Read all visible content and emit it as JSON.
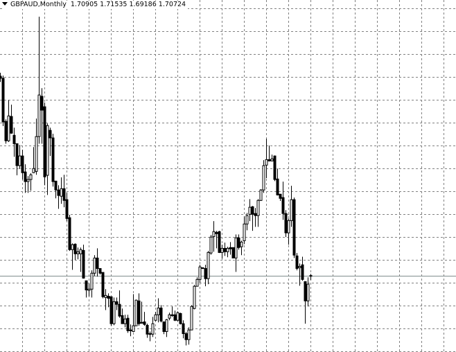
{
  "header": {
    "symbol": "GBPAUD",
    "timeframe": "Monthly",
    "title": "GBPAUD,Monthly",
    "ohlc_text": "1.70905 1.71535 1.69186 1.70724",
    "menu_icon": "triangle-down-icon"
  },
  "colors": {
    "background": "#ffffff",
    "grid": "#808080",
    "candle": "#000000",
    "bull_fill": "#ffffff",
    "bear_fill": "#000000",
    "bid_line": "#7f8c8c"
  },
  "chart_data": {
    "type": "candlestick",
    "title": "GBPAUD,Monthly",
    "grid": true,
    "ylim": [
      1.4168,
      2.762
    ],
    "bid": 1.70724,
    "ohlc": [
      [
        2.471,
        2.484,
        2.449,
        2.463
      ],
      [
        2.463,
        2.473,
        2.28,
        2.296
      ],
      [
        2.298,
        2.306,
        2.213,
        2.224
      ],
      [
        2.224,
        2.38,
        2.219,
        2.319
      ],
      [
        2.317,
        2.362,
        2.251,
        2.253
      ],
      [
        2.245,
        2.274,
        2.163,
        2.213
      ],
      [
        2.213,
        2.213,
        2.092,
        2.129
      ],
      [
        2.129,
        2.208,
        2.116,
        2.166
      ],
      [
        2.166,
        2.19,
        2.076,
        2.102
      ],
      [
        2.105,
        2.134,
        2.025,
        2.068
      ],
      [
        2.068,
        2.089,
        2.025,
        2.076
      ],
      [
        2.076,
        2.1,
        2.033,
        2.094
      ],
      [
        2.102,
        2.2,
        2.1,
        2.118
      ],
      [
        2.107,
        2.309,
        2.094,
        2.24
      ],
      [
        2.24,
        2.698,
        2.213,
        2.399
      ],
      [
        2.394,
        2.425,
        2.213,
        2.341
      ],
      [
        2.354,
        2.37,
        2.054,
        2.086
      ],
      [
        2.092,
        2.29,
        2.017,
        2.282
      ],
      [
        2.264,
        2.274,
        2.166,
        2.235
      ],
      [
        2.235,
        2.251,
        2.049,
        2.068
      ],
      [
        2.07,
        2.07,
        2.004,
        2.036
      ],
      [
        2.036,
        2.054,
        1.964,
        2.015
      ],
      [
        2.012,
        2.084,
        1.983,
        2.041
      ],
      [
        2.041,
        2.094,
        1.97,
        1.996
      ],
      [
        1.999,
        2.025,
        1.917,
        1.927
      ],
      [
        1.93,
        1.941,
        1.803,
        1.808
      ],
      [
        1.808,
        1.832,
        1.731,
        1.827
      ],
      [
        1.829,
        1.832,
        1.768,
        1.792
      ],
      [
        1.792,
        1.816,
        1.771,
        1.8
      ],
      [
        1.792,
        1.816,
        1.723,
        1.808
      ],
      [
        1.805,
        1.827,
        1.697,
        1.699
      ],
      [
        1.689,
        1.689,
        1.625,
        1.654
      ],
      [
        1.652,
        1.678,
        1.63,
        1.657
      ],
      [
        1.657,
        1.729,
        1.625,
        1.718
      ],
      [
        1.718,
        1.787,
        1.707,
        1.776
      ],
      [
        1.776,
        1.813,
        1.705,
        1.736
      ],
      [
        1.736,
        1.736,
        1.713,
        1.718
      ],
      [
        1.721,
        1.721,
        1.622,
        1.628
      ],
      [
        1.625,
        1.657,
        1.577,
        1.633
      ],
      [
        1.63,
        1.641,
        1.588,
        1.622
      ],
      [
        1.628,
        1.628,
        1.517,
        1.525
      ],
      [
        1.525,
        1.625,
        1.519,
        1.609
      ],
      [
        1.609,
        1.625,
        1.577,
        1.599
      ],
      [
        1.599,
        1.652,
        1.548,
        1.554
      ],
      [
        1.556,
        1.583,
        1.525,
        1.525
      ],
      [
        1.525,
        1.559,
        1.511,
        1.543
      ],
      [
        1.546,
        1.559,
        1.49,
        1.498
      ],
      [
        1.501,
        1.522,
        1.477,
        1.498
      ],
      [
        1.495,
        1.638,
        1.493,
        1.517
      ],
      [
        1.517,
        1.617,
        1.517,
        1.615
      ],
      [
        1.612,
        1.641,
        1.517,
        1.525
      ],
      [
        1.53,
        1.609,
        1.525,
        1.527
      ],
      [
        1.532,
        1.57,
        1.517,
        1.522
      ],
      [
        1.519,
        1.525,
        1.471,
        1.485
      ],
      [
        1.485,
        1.495,
        1.458,
        1.487
      ],
      [
        1.485,
        1.551,
        1.474,
        1.525
      ],
      [
        1.538,
        1.57,
        1.535,
        1.559
      ],
      [
        1.559,
        1.622,
        1.53,
        1.585
      ],
      [
        1.585,
        1.596,
        1.53,
        1.535
      ],
      [
        1.532,
        1.532,
        1.485,
        1.495
      ],
      [
        1.495,
        1.543,
        1.474,
        1.54
      ],
      [
        1.546,
        1.567,
        1.538,
        1.559
      ],
      [
        1.559,
        1.591,
        1.551,
        1.556
      ],
      [
        1.559,
        1.575,
        1.535,
        1.538
      ],
      [
        1.538,
        1.572,
        1.535,
        1.567
      ],
      [
        1.564,
        1.567,
        1.522,
        1.525
      ],
      [
        1.525,
        1.538,
        1.469,
        1.487
      ],
      [
        1.487,
        1.493,
        1.442,
        1.464
      ],
      [
        1.464,
        1.511,
        1.445,
        1.501
      ],
      [
        1.501,
        1.596,
        1.501,
        1.591
      ],
      [
        1.583,
        1.673,
        1.58,
        1.668
      ],
      [
        1.668,
        1.702,
        1.668,
        1.694
      ],
      [
        1.694,
        1.75,
        1.681,
        1.742
      ],
      [
        1.739,
        1.739,
        1.734,
        1.736
      ],
      [
        1.736,
        1.75,
        1.668,
        1.697
      ],
      [
        1.697,
        1.803,
        1.676,
        1.797
      ],
      [
        1.795,
        1.864,
        1.789,
        1.856
      ],
      [
        1.858,
        1.917,
        1.8,
        1.877
      ],
      [
        1.874,
        1.88,
        1.813,
        1.869
      ],
      [
        1.877,
        1.88,
        1.795,
        1.797
      ],
      [
        1.797,
        1.827,
        1.774,
        1.813
      ],
      [
        1.813,
        1.835,
        1.784,
        1.8
      ],
      [
        1.8,
        1.819,
        1.779,
        1.813
      ],
      [
        1.816,
        1.837,
        1.789,
        1.811
      ],
      [
        1.816,
        1.816,
        1.776,
        1.776
      ],
      [
        1.776,
        1.866,
        1.723,
        1.853
      ],
      [
        1.853,
        1.866,
        1.808,
        1.816
      ],
      [
        1.819,
        1.842,
        1.787,
        1.837
      ],
      [
        1.842,
        1.935,
        1.829,
        1.906
      ],
      [
        1.906,
        1.948,
        1.882,
        1.938
      ],
      [
        1.943,
        2.001,
        1.917,
        1.97
      ],
      [
        1.972,
        1.975,
        1.88,
        1.943
      ],
      [
        1.946,
        1.967,
        1.895,
        1.938
      ],
      [
        1.938,
        2.001,
        1.895,
        1.996
      ],
      [
        1.996,
        2.039,
        1.994,
        2.036
      ],
      [
        2.036,
        2.15,
        2.025,
        2.129
      ],
      [
        2.131,
        2.232,
        2.081,
        2.152
      ],
      [
        2.152,
        2.206,
        2.145,
        2.147
      ],
      [
        2.147,
        2.171,
        2.145,
        2.155
      ],
      [
        2.166,
        2.168,
        2.07,
        2.076
      ],
      [
        2.078,
        2.118,
        2.015,
        2.017
      ],
      [
        2.02,
        2.02,
        1.994,
        2.004
      ],
      [
        2.007,
        2.068,
        1.922,
        1.946
      ],
      [
        1.946,
        1.959,
        1.856,
        1.872
      ],
      [
        1.872,
        1.927,
        1.827,
        1.919
      ],
      [
        1.919,
        2.052,
        1.895,
        1.999
      ],
      [
        1.999,
        2.007,
        1.776,
        1.787
      ],
      [
        1.784,
        1.795,
        1.729,
        1.736
      ],
      [
        1.739,
        1.755,
        1.67,
        1.744
      ],
      [
        1.75,
        1.781,
        1.689,
        1.694
      ],
      [
        1.686,
        1.686,
        1.525,
        1.612
      ],
      [
        1.612,
        1.702,
        1.591,
        1.676
      ],
      [
        1.70905,
        1.71535,
        1.69186,
        1.70724
      ]
    ]
  }
}
